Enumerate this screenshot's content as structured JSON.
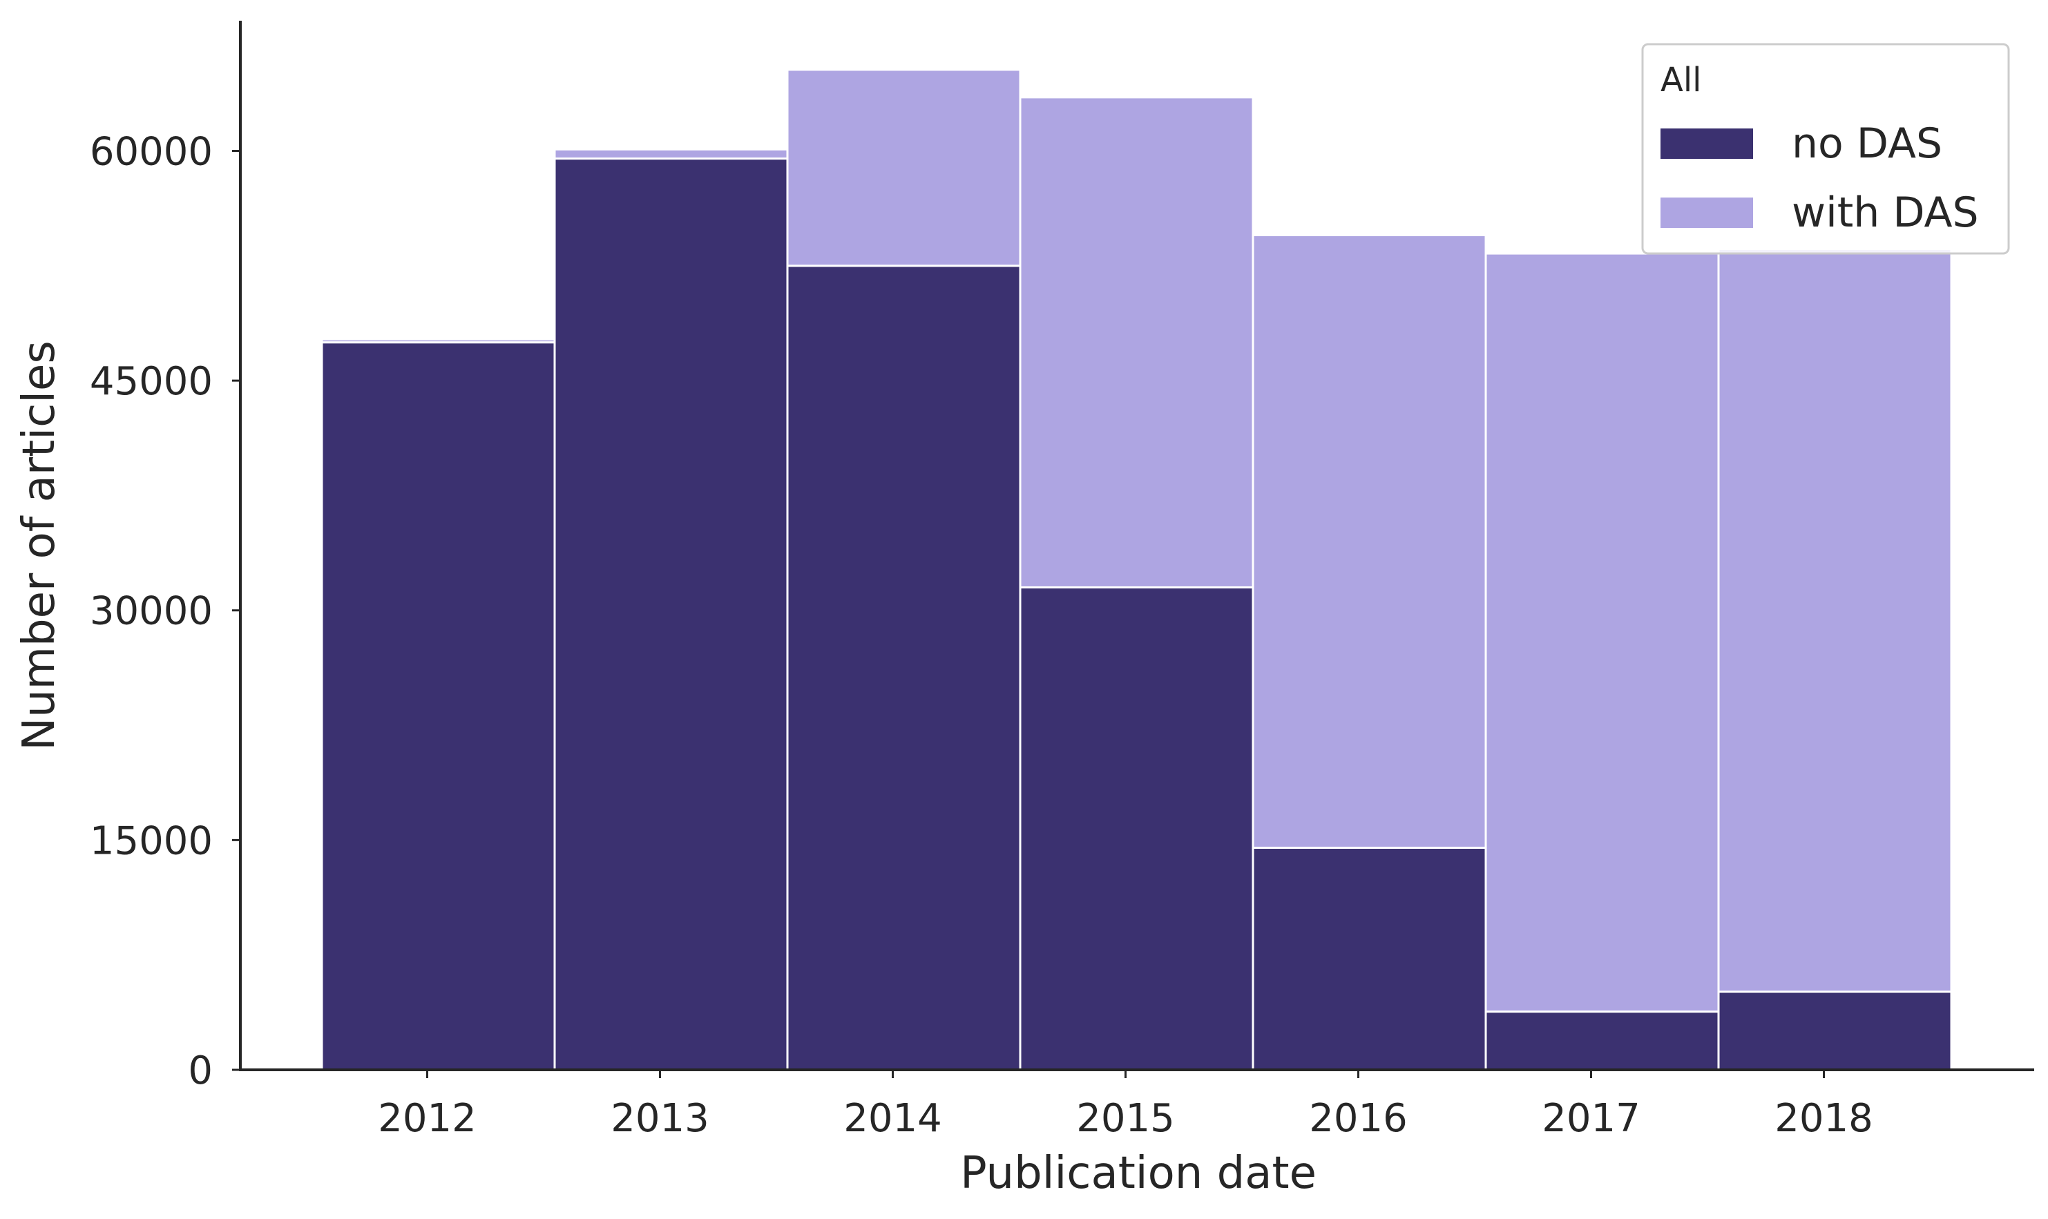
{
  "chart_data": {
    "type": "bar",
    "stacked": true,
    "xlabel": "Publication date",
    "ylabel": "Number of articles",
    "categories": [
      "2012",
      "2013",
      "2014",
      "2015",
      "2016",
      "2017",
      "2018"
    ],
    "series": [
      {
        "name": "no DAS",
        "color": "#3b3170",
        "values": [
          47500,
          59500,
          52500,
          31500,
          14500,
          3800,
          5100
        ]
      },
      {
        "name": "with DAS",
        "color": "#aea5e2",
        "values": [
          200,
          600,
          12800,
          32000,
          40000,
          49500,
          48500
        ]
      }
    ],
    "yticks": [
      0,
      15000,
      30000,
      45000,
      60000
    ],
    "ylim": [
      0,
      68500
    ],
    "grid": false,
    "legend": {
      "title": "All",
      "position": "top-right"
    }
  }
}
